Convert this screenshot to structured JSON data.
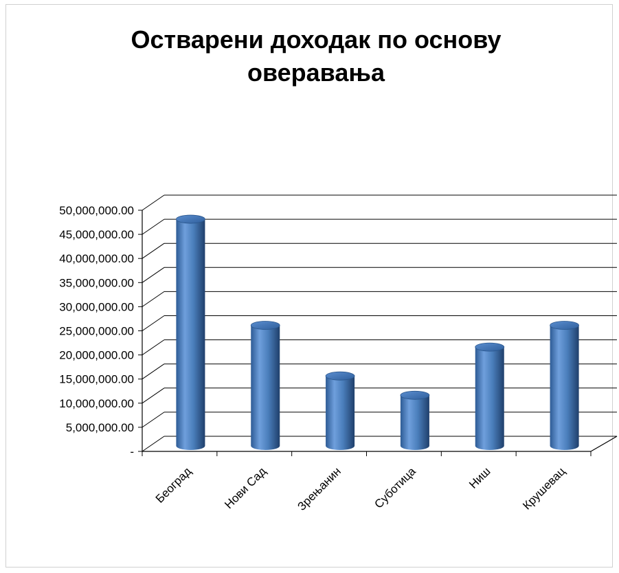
{
  "chart_data": {
    "type": "bar",
    "style": "3d-cylinder",
    "title_lines": [
      "Остварени доходак по основу",
      "оверавања"
    ],
    "categories": [
      "Београд",
      "Нови Сад",
      "Зрењанин",
      "Суботица",
      "Ниш",
      "Крушевац"
    ],
    "values": [
      47000000,
      25000000,
      14500000,
      10500000,
      20500000,
      25000000
    ],
    "ylim": [
      0,
      50000000
    ],
    "yticks": [
      0,
      5000000,
      10000000,
      15000000,
      20000000,
      25000000,
      30000000,
      35000000,
      40000000,
      45000000,
      50000000
    ],
    "ytick_labels": [
      "-",
      "5,000,000.00",
      "10,000,000.00",
      "15,000,000.00",
      "20,000,000.00",
      "25,000,000.00",
      "30,000,000.00",
      "35,000,000.00",
      "40,000,000.00",
      "45,000,000.00",
      "50,000,000.00"
    ],
    "grid": true,
    "legend": false,
    "bar_color": "#4a7ebb"
  }
}
